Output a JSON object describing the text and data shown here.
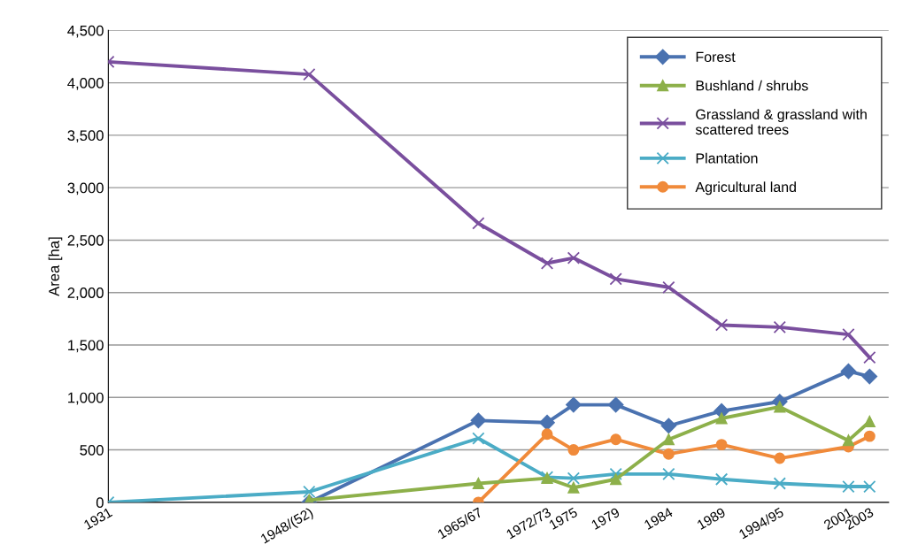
{
  "chart_data": {
    "type": "line",
    "ylabel": "Area [ha]",
    "xlim": [
      1931,
      2004.8
    ],
    "ylim": [
      0,
      4500
    ],
    "xticks": [
      {
        "value": 1931,
        "label": "1931"
      },
      {
        "value": 1950,
        "label": "1948/(52)"
      },
      {
        "value": 1966,
        "label": "1965/67"
      },
      {
        "value": 1972.5,
        "label": "1972/73"
      },
      {
        "value": 1975,
        "label": "1975"
      },
      {
        "value": 1979,
        "label": "1979"
      },
      {
        "value": 1984,
        "label": "1984"
      },
      {
        "value": 1989,
        "label": "1989"
      },
      {
        "value": 1994.5,
        "label": "1994/95"
      },
      {
        "value": 2001,
        "label": "2001"
      },
      {
        "value": 2003,
        "label": "2003"
      }
    ],
    "yticks": [
      {
        "value": 0,
        "label": "0"
      },
      {
        "value": 500,
        "label": "500"
      },
      {
        "value": 1000,
        "label": "1,000"
      },
      {
        "value": 1500,
        "label": "1,500"
      },
      {
        "value": 2000,
        "label": "2,000"
      },
      {
        "value": 2500,
        "label": "2,500"
      },
      {
        "value": 3000,
        "label": "3,000"
      },
      {
        "value": 3500,
        "label": "3,500"
      },
      {
        "value": 4000,
        "label": "4,000"
      },
      {
        "value": 4500,
        "label": "4,500"
      }
    ],
    "grid": "y",
    "legend": "top right",
    "line_style": "solid",
    "series": [
      {
        "name": "Forest",
        "color": "#4a72b0",
        "marker": "diamond",
        "x": [
          1950,
          1966,
          1972.5,
          1975,
          1979,
          1984,
          1989,
          1994.5,
          2001,
          2003
        ],
        "values": [
          0,
          780,
          760,
          930,
          930,
          730,
          870,
          960,
          1250,
          1200
        ]
      },
      {
        "name": "Bushland / shrubs",
        "color": "#8db04a",
        "marker": "triangle",
        "x": [
          1950,
          1966,
          1972.5,
          1975,
          1979,
          1984,
          1989,
          1994.5,
          2001,
          2003
        ],
        "values": [
          20,
          180,
          230,
          140,
          220,
          600,
          800,
          910,
          590,
          770
        ]
      },
      {
        "name": "Grassland & grassland with\nscattered trees",
        "color": "#7a4f9e",
        "marker": "cross",
        "x": [
          1931,
          1950,
          1966,
          1972.5,
          1975,
          1979,
          1984,
          1989,
          1994.5,
          2001,
          2003
        ],
        "values": [
          4200,
          4080,
          2660,
          2280,
          2330,
          2130,
          2050,
          1690,
          1670,
          1600,
          1380
        ]
      },
      {
        "name": "Plantation",
        "color": "#4bacc6",
        "marker": "cross",
        "x": [
          1931,
          1950,
          1966,
          1972.5,
          1975,
          1979,
          1984,
          1989,
          1994.5,
          2001,
          2003
        ],
        "values": [
          0,
          100,
          610,
          240,
          230,
          270,
          270,
          220,
          180,
          150,
          150
        ]
      },
      {
        "name": "Agricultural land",
        "color": "#f08a3a",
        "marker": "circle",
        "x": [
          1966,
          1972.5,
          1975,
          1979,
          1984,
          1989,
          1994.5,
          2001,
          2003
        ],
        "values": [
          0,
          650,
          500,
          600,
          460,
          550,
          420,
          530,
          630
        ]
      }
    ]
  }
}
